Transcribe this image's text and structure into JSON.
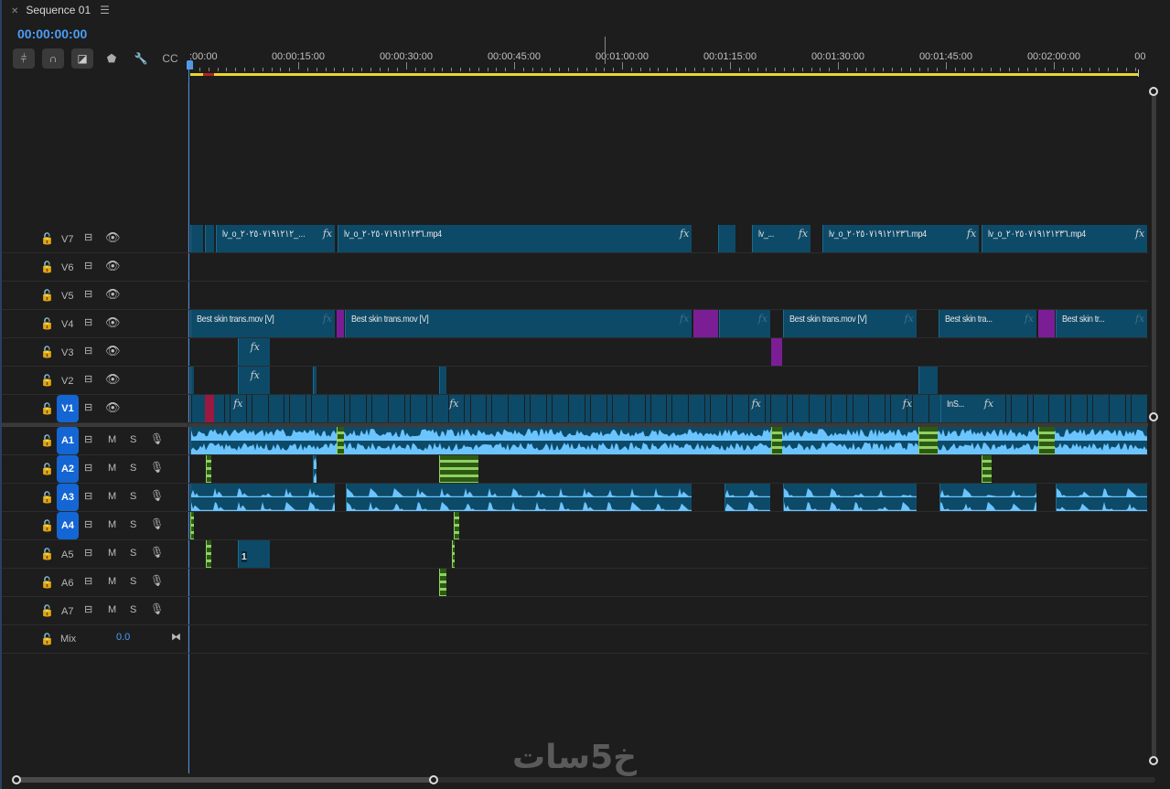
{
  "panel": {
    "tab_title": "Sequence 01",
    "close_icon": "close-icon",
    "menu_icon": "hamburger-menu-icon",
    "timecode": "00:00:00:00"
  },
  "toolbar": [
    {
      "name": "insert-nested-sequence-button",
      "glyph": "⫩"
    },
    {
      "name": "snap-button",
      "glyph": "∩"
    },
    {
      "name": "linked-selection-button",
      "glyph": "◪"
    },
    {
      "name": "add-marker-button",
      "glyph": "⬟"
    },
    {
      "name": "timeline-settings-button",
      "glyph": "🔧"
    },
    {
      "name": "captions-button",
      "glyph": "CC"
    }
  ],
  "ruler": {
    "labels": [
      ":00:00",
      "00:00:15:00",
      "00:00:30:00",
      "00:00:45:00",
      "00:01:00:00",
      "00:01:15:00",
      "00:01:30:00",
      "00:01:45:00",
      "00:02:00:00",
      "00"
    ],
    "seconds": [
      0,
      15,
      30,
      45,
      60,
      75,
      90,
      105,
      120,
      132
    ]
  },
  "colors": {
    "accent": "#1466d4",
    "timecode": "#4a9df5",
    "video_clip": "#0d4a68",
    "purple_clip": "#7b1e96",
    "audio_wave": "#6cc4ff",
    "green_clip": "#2d5a12",
    "work_area": "#e8d631"
  },
  "video_tracks": [
    {
      "name": "V7",
      "targeted": false,
      "clips": [
        {
          "s": 0,
          "e": 1.8
        },
        {
          "s": 2,
          "e": 3.3
        },
        {
          "s": 3.6,
          "e": 20.1,
          "label": "lv_o_٢٠٢٥٠٧١٩١٢١٢_...",
          "fx": true
        },
        {
          "s": 20.5,
          "e": 69.7,
          "label": "lv_o_٢٠٢٥٠٧١٩١٢١٢٣٦.mp4",
          "fx": true
        },
        {
          "s": 73.3,
          "e": 75.8
        },
        {
          "s": 78,
          "e": 86.2,
          "label": "lv_...",
          "fx": true
        },
        {
          "s": 87.8,
          "e": 109.6,
          "label": "lv_o_٢٠٢٥٠٧١٩١٢١٢٣٦.mp4",
          "fx": true
        },
        {
          "s": 110,
          "e": 133,
          "label": "lv_o_٢٠٢٥٠٧١٩١٢١٢٣٦.mp4",
          "fx": true
        }
      ]
    },
    {
      "name": "V6",
      "targeted": false,
      "clips": []
    },
    {
      "name": "V5",
      "targeted": false,
      "clips": []
    },
    {
      "name": "V4",
      "targeted": false,
      "clips": [
        {
          "s": 0,
          "e": 20.1,
          "label": "Best skin trans.mov [V]",
          "fx": "dim"
        },
        {
          "s": 20.3,
          "e": 21.4,
          "type": "purple"
        },
        {
          "s": 21.5,
          "e": 69.7,
          "label": "Best skin trans.mov [V]",
          "fx": "dim"
        },
        {
          "s": 69.9,
          "e": 73.3,
          "type": "purple"
        },
        {
          "s": 73.5,
          "e": 80.6,
          "fx": "dim"
        },
        {
          "s": 82.4,
          "e": 100.9,
          "label": "Best skin trans.mov [V]",
          "fx": "dim"
        },
        {
          "s": 104,
          "e": 117.6,
          "label": "Best skin tra...",
          "fx": "dim"
        },
        {
          "s": 117.8,
          "e": 120.1,
          "type": "purple"
        },
        {
          "s": 120.2,
          "e": 133,
          "label": "Best skin tr...",
          "fx": "dim"
        }
      ]
    },
    {
      "name": "V3",
      "targeted": false,
      "clips": [
        {
          "s": 6.6,
          "e": 11.1,
          "fx": true,
          "center": true
        },
        {
          "s": 80.7,
          "e": 82.2,
          "type": "purple"
        }
      ]
    },
    {
      "name": "V2",
      "targeted": false,
      "clips": [
        {
          "s": 0,
          "e": 0.5
        },
        {
          "s": 6.6,
          "e": 11.1,
          "fx": true,
          "center": true
        },
        {
          "s": 17,
          "e": 17.5
        },
        {
          "s": 34.6,
          "e": 35.6
        },
        {
          "s": 101.2,
          "e": 103.9
        }
      ]
    },
    {
      "name": "V1",
      "targeted": true,
      "clips": [
        {
          "s": 0,
          "e": 133,
          "cuts": true
        },
        {
          "s": 2,
          "e": 3.3,
          "type": "red"
        },
        {
          "s": 6,
          "e": 7,
          "fxonly": true
        },
        {
          "s": 36,
          "e": 37,
          "fxonly": true
        },
        {
          "s": 78,
          "e": 79,
          "fxonly": true
        },
        {
          "s": 99,
          "e": 100,
          "fxonly": true
        },
        {
          "s": 104.3,
          "e": 112,
          "label": "InS...",
          "fx": true
        }
      ]
    }
  ],
  "audio_tracks": [
    {
      "name": "A1",
      "targeted": true,
      "clips": [
        {
          "s": 0,
          "e": 133,
          "type": "wave"
        },
        {
          "s": 20.3,
          "e": 21.4,
          "type": "green"
        },
        {
          "s": 80.7,
          "e": 82.2,
          "type": "green"
        },
        {
          "s": 101.2,
          "e": 103.9,
          "type": "green"
        },
        {
          "s": 117.8,
          "e": 120.1,
          "type": "green"
        }
      ]
    },
    {
      "name": "A2",
      "targeted": true,
      "clips": [
        {
          "s": 2.2,
          "e": 2.9,
          "type": "green"
        },
        {
          "s": 17,
          "e": 17.5,
          "type": "wave"
        },
        {
          "s": 34.6,
          "e": 40,
          "type": "green"
        },
        {
          "s": 110,
          "e": 111.4,
          "type": "green"
        }
      ]
    },
    {
      "name": "A3",
      "targeted": true,
      "clips": [
        {
          "s": 0,
          "e": 20.1,
          "type": "peaks"
        },
        {
          "s": 21.6,
          "e": 69.7,
          "type": "peaks"
        },
        {
          "s": 74.3,
          "e": 80.6,
          "type": "peaks"
        },
        {
          "s": 82.4,
          "e": 100.9,
          "type": "peaks"
        },
        {
          "s": 104.1,
          "e": 117.6,
          "type": "peaks"
        },
        {
          "s": 120.2,
          "e": 133,
          "type": "peaks"
        }
      ]
    },
    {
      "name": "A4",
      "targeted": true,
      "clips": [
        {
          "s": 0,
          "e": 0.5,
          "type": "green"
        },
        {
          "s": 36.6,
          "e": 37.4,
          "type": "green"
        }
      ]
    },
    {
      "name": "A5",
      "targeted": false,
      "clips": [
        {
          "s": 2.2,
          "e": 2.9,
          "type": "green"
        },
        {
          "s": 6.6,
          "e": 11.1,
          "type": "ablue",
          "label": "1"
        },
        {
          "s": 36.4,
          "e": 36.8,
          "type": "green"
        }
      ]
    },
    {
      "name": "A6",
      "targeted": false,
      "clips": [
        {
          "s": 34.6,
          "e": 35.6,
          "type": "green"
        }
      ]
    },
    {
      "name": "A7",
      "targeted": false,
      "clips": []
    }
  ],
  "audio_buttons": {
    "mute": "M",
    "solo": "S"
  },
  "mix": {
    "label": "Mix",
    "value": "0.0"
  },
  "fx_label": "fx",
  "watermark": "خ5سات"
}
